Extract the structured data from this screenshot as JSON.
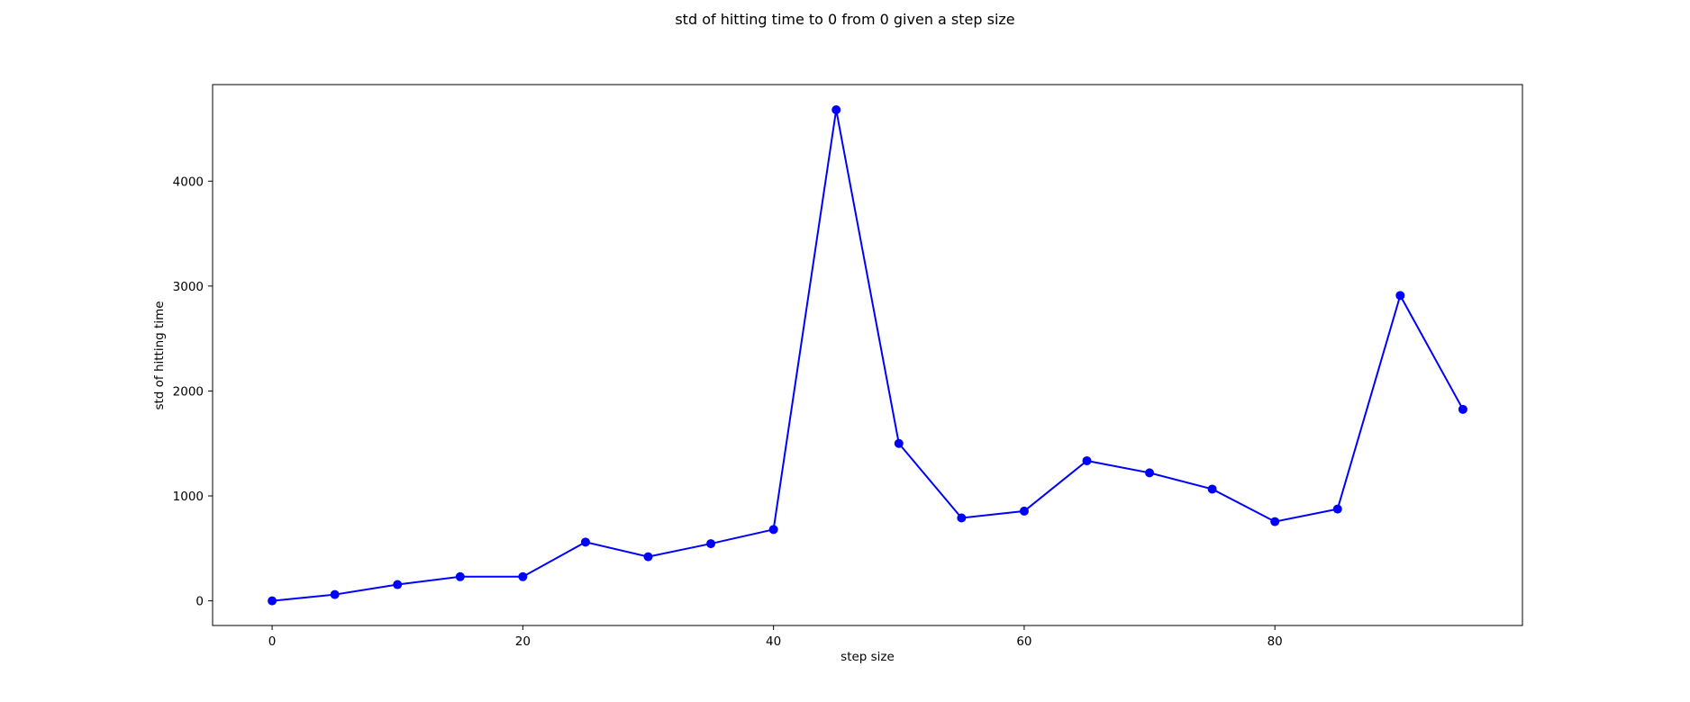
{
  "chart_data": {
    "type": "line",
    "title": "std of hitting time to 0 from 0 given a step size",
    "xlabel": "step size",
    "ylabel": "std of hitting time",
    "xlim": [
      -4.75,
      99.75
    ],
    "ylim": [
      -235,
      4920
    ],
    "xticks": [
      0,
      20,
      40,
      60,
      80
    ],
    "yticks": [
      0,
      1000,
      2000,
      3000,
      4000
    ],
    "grid": false,
    "series": [
      {
        "color": "#0000ff",
        "marker": "circle",
        "x": [
          0,
          5,
          10,
          15,
          20,
          25,
          30,
          35,
          40,
          45,
          50,
          55,
          60,
          65,
          70,
          75,
          80,
          85,
          90,
          95
        ],
        "y": [
          0,
          60,
          155,
          230,
          230,
          560,
          420,
          545,
          680,
          4680,
          1500,
          790,
          855,
          1335,
          1220,
          1065,
          755,
          875,
          2910,
          1825
        ]
      }
    ]
  }
}
